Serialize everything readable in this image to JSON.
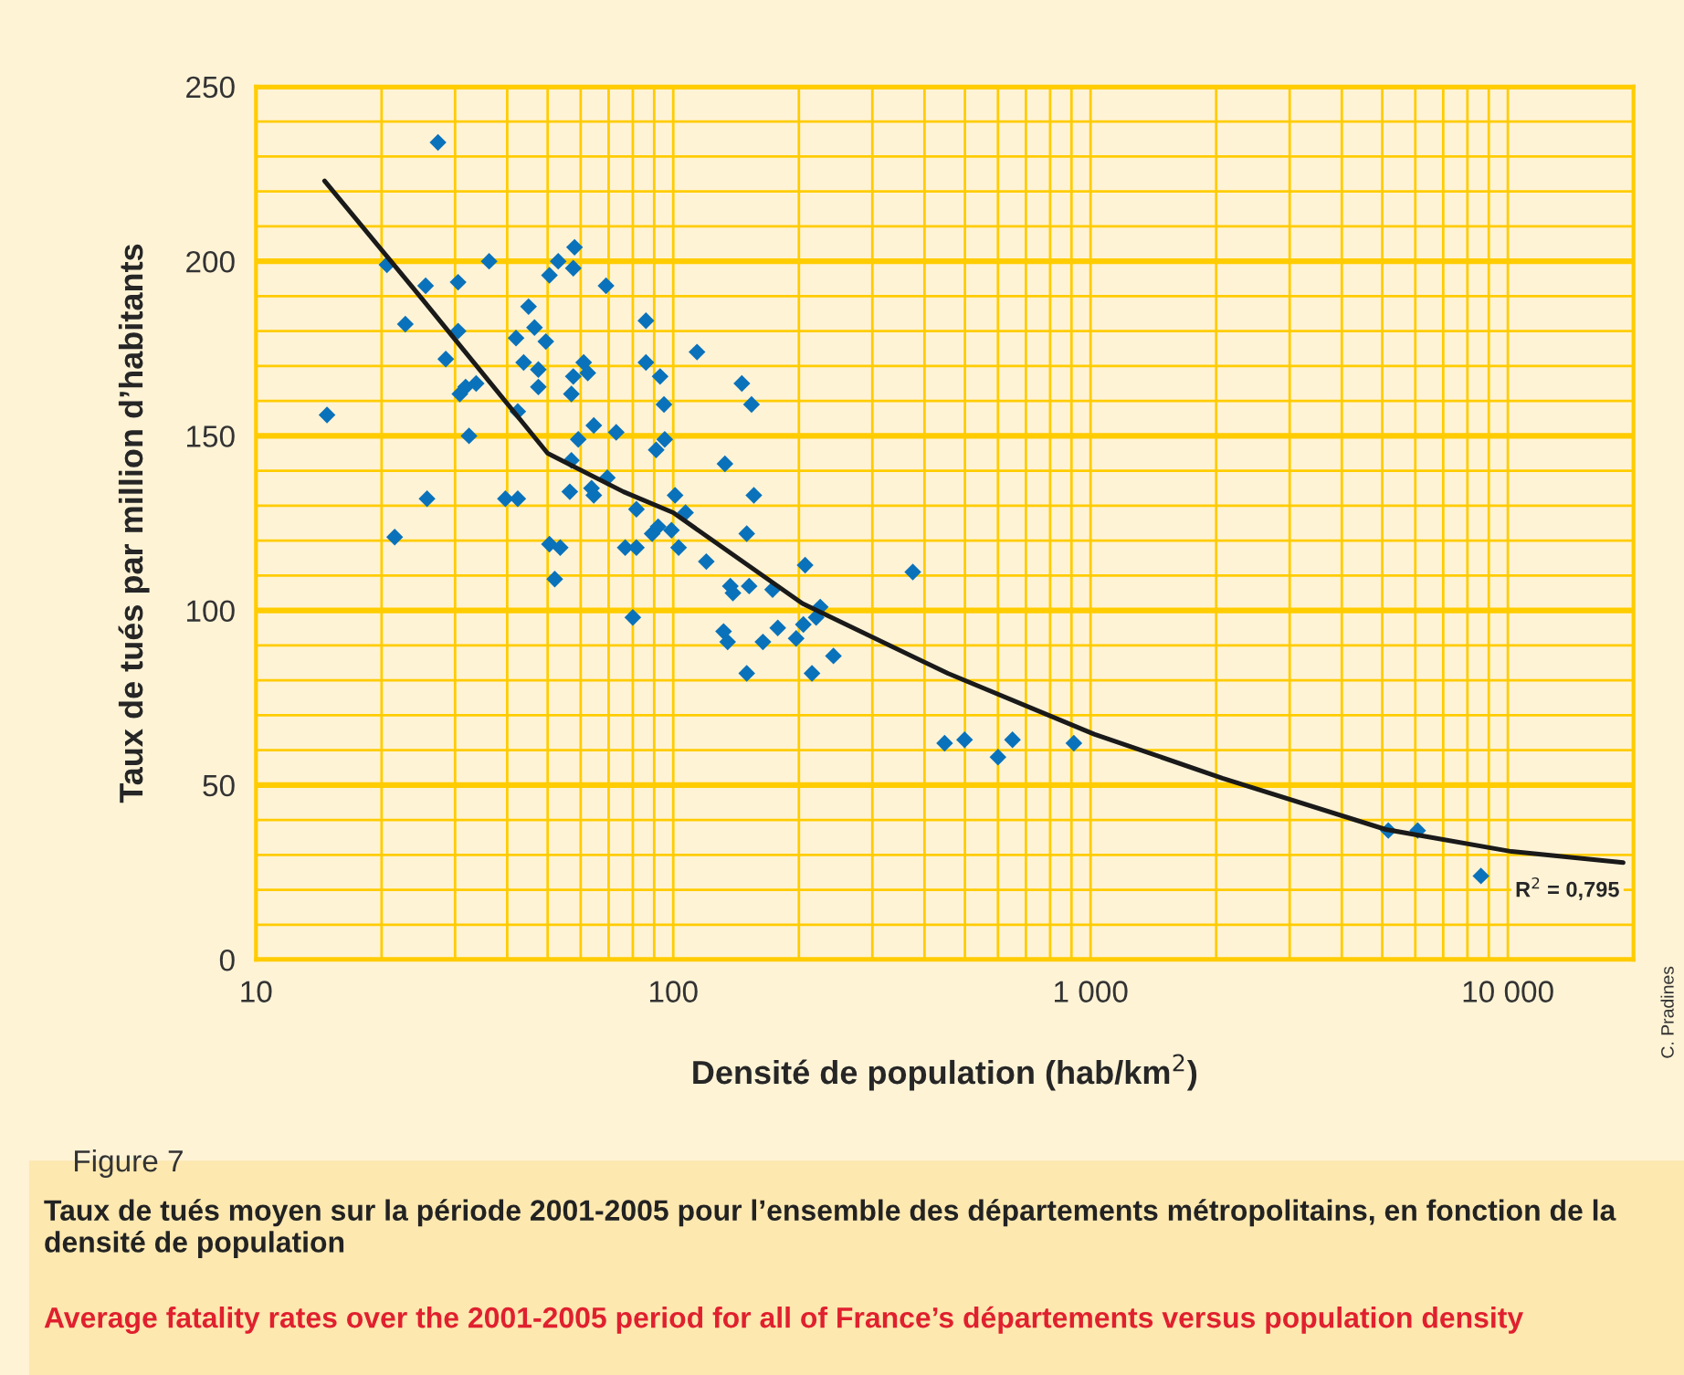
{
  "chart_data": {
    "type": "scatter",
    "title": "Figure 7",
    "subtitle": "Taux de tués moyen sur la période 2001-2005 pour l’ensemble des départements métropolitains, en fonction de la densité de population",
    "xlabel": "Densité de population (hab/km$^{2}$)",
    "ylabel": "Taux de tués par million d’habitants",
    "log": "x",
    "xlim": [
      10,
      20000
    ],
    "xticks": [
      10,
      100,
      {
        "value": 1000,
        "label": "1 000"
      },
      {
        "value": 10000,
        "label": "10 000"
      }
    ],
    "ylim": [
      0,
      250
    ],
    "yticks": [
      0,
      {
        "value": 10,
        "label": null
      },
      {
        "value": 20,
        "label": null
      },
      {
        "value": 30,
        "label": null
      },
      {
        "value": 40,
        "label": null
      },
      50,
      {
        "value": 60,
        "label": null
      },
      {
        "value": 70,
        "label": null
      },
      {
        "value": 80,
        "label": null
      },
      {
        "value": 90,
        "label": null
      },
      100,
      {
        "value": 110,
        "label": null
      },
      {
        "value": 120,
        "label": null
      },
      {
        "value": 130,
        "label": null
      },
      {
        "value": 140,
        "label": null
      },
      150,
      {
        "value": 160,
        "label": null
      },
      {
        "value": 170,
        "label": null
      },
      {
        "value": 180,
        "label": null
      },
      {
        "value": 190,
        "label": null
      },
      200,
      {
        "value": 210,
        "label": null
      },
      {
        "value": 220,
        "label": null
      },
      {
        "value": 230,
        "label": null
      },
      {
        "value": 240,
        "label": null
      },
      250
    ],
    "grid": true,
    "series": [
      {
        "type": "scatter",
        "color": "#0a72ba",
        "marker": "diamond",
        "x": [
          14.8,
          20.6,
          21.5,
          22.8,
          25.5,
          25.7,
          27.3,
          28.5,
          30.5,
          30.5,
          30.8,
          31.8,
          32.4,
          33.7,
          36.2,
          39.6,
          42,
          42.4,
          42.4,
          43.8,
          45,
          46.5,
          47.5,
          47.5,
          49.5,
          50.5,
          50.5,
          52,
          53,
          53.6,
          56.5,
          57,
          57,
          57.6,
          57.6,
          58,
          59.2,
          61,
          62.4,
          63.7,
          64.5,
          64.5,
          69,
          69.5,
          73,
          76.7,
          80,
          81.6,
          81.6,
          86,
          86,
          89,
          91,
          92,
          93,
          95,
          95.4,
          99,
          101,
          103,
          107,
          114,
          120,
          132,
          133,
          135,
          137,
          139,
          146,
          150,
          150,
          152,
          154,
          156,
          164,
          173,
          178,
          197,
          205,
          207,
          215,
          220,
          225,
          242,
          375,
          447,
          499,
          600,
          650,
          912,
          5170,
          6080,
          8620
        ],
        "values": [
          156,
          199,
          121,
          182,
          193,
          132,
          234,
          172,
          194,
          180,
          162,
          164,
          150,
          165,
          200,
          132,
          178,
          132,
          157,
          171,
          187,
          181,
          169,
          164,
          177,
          196,
          119,
          109,
          200,
          118,
          134,
          143,
          162,
          167,
          198,
          204,
          149,
          171,
          168,
          135,
          153,
          133,
          193,
          138,
          151,
          118,
          98,
          129,
          118,
          183,
          171,
          122,
          146,
          124,
          167,
          159,
          149,
          123,
          133,
          118,
          128,
          174,
          114,
          94,
          142,
          91,
          107,
          105,
          165,
          122,
          82,
          107,
          159,
          133,
          91,
          106,
          95,
          92,
          96,
          113,
          82,
          98,
          101,
          87,
          111,
          62,
          63,
          58,
          63,
          62,
          37,
          37,
          24
        ]
      },
      {
        "type": "line",
        "color": "#1a1a1a",
        "marker": "none",
        "line_style": "solid",
        "x": [
          14.6,
          24.7,
          50,
          76,
          100,
          204,
          455,
          1020,
          2070,
          5100,
          10200,
          18900
        ],
        "values": [
          223,
          190,
          145,
          134,
          128,
          102,
          82,
          64.6,
          52,
          37.3,
          31,
          27.8
        ]
      }
    ],
    "annotations": [
      "R$^{2}$ = 0,795",
      "Average fatality rates over the 2001-2005 period for all of France’s départements versus population density",
      "C. Pradines"
    ]
  }
}
